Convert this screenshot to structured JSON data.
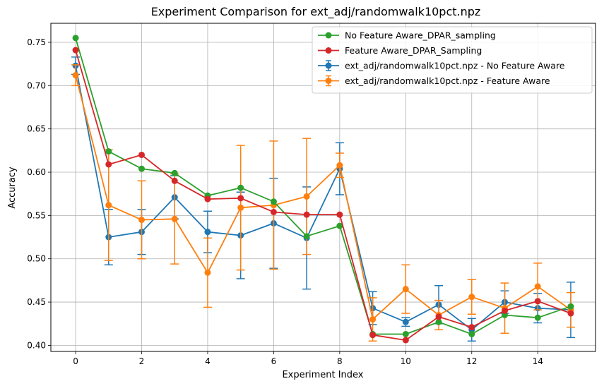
{
  "chart_data": {
    "type": "line",
    "title": "Experiment Comparison for ext_adj/randomwalk10pct.npz",
    "xlabel": "Experiment Index",
    "ylabel": "Accuracy",
    "xlim": [
      -0.75,
      15.75
    ],
    "ylim": [
      0.393,
      0.772
    ],
    "x_ticks": [
      0,
      2,
      4,
      6,
      8,
      10,
      12,
      14
    ],
    "x_tick_labels": [
      "0",
      "2",
      "4",
      "6",
      "8",
      "10",
      "12",
      "14"
    ],
    "y_ticks": [
      0.4,
      0.45,
      0.5,
      0.55,
      0.6,
      0.65,
      0.7,
      0.75
    ],
    "y_tick_labels": [
      "0.40",
      "0.45",
      "0.50",
      "0.55",
      "0.60",
      "0.65",
      "0.70",
      "0.75"
    ],
    "grid": true,
    "legend_position": "top-right",
    "x": [
      0,
      1,
      2,
      3,
      4,
      5,
      6,
      7,
      8,
      9,
      10,
      11,
      12,
      13,
      14,
      15
    ],
    "series": [
      {
        "name": "ext_adj/randomwalk10pct.npz - No Feature Aware",
        "color": "#1f77b4",
        "values": [
          0.723,
          0.525,
          0.531,
          0.571,
          0.531,
          0.527,
          0.541,
          0.524,
          0.604,
          0.443,
          0.427,
          0.447,
          0.418,
          0.45,
          0.443,
          0.441
        ],
        "errors": [
          0.01,
          0.032,
          0.026,
          0.025,
          0.024,
          0.05,
          0.052,
          0.059,
          0.03,
          0.019,
          0.005,
          0.022,
          0.013,
          0.013,
          0.017,
          0.032
        ]
      },
      {
        "name": "ext_adj/randomwalk10pct.npz - Feature Aware",
        "color": "#ff7f0e",
        "values": [
          0.712,
          0.562,
          0.545,
          0.546,
          0.484,
          0.559,
          0.562,
          0.572,
          0.608,
          0.43,
          0.465,
          0.435,
          0.456,
          0.443,
          0.468,
          0.441
        ],
        "errors": [
          0.012,
          0.064,
          0.045,
          0.052,
          0.04,
          0.072,
          0.074,
          0.067,
          0.014,
          0.025,
          0.028,
          0.017,
          0.02,
          0.029,
          0.027,
          0.02
        ]
      },
      {
        "name": "No Feature Aware_DPAR_sampling",
        "color": "#2ca02c",
        "values": [
          0.755,
          0.624,
          0.604,
          0.599,
          0.573,
          0.582,
          0.566,
          0.526,
          0.538,
          0.413,
          0.413,
          0.427,
          0.413,
          0.435,
          0.432,
          0.445
        ]
      },
      {
        "name": "Feature Aware_DPAR_Sampling",
        "color": "#d62728",
        "values": [
          0.741,
          0.609,
          0.62,
          0.59,
          0.569,
          0.57,
          0.554,
          0.551,
          0.551,
          0.412,
          0.406,
          0.433,
          0.421,
          0.44,
          0.451,
          0.437
        ]
      }
    ],
    "legend_order": [
      2,
      3,
      0,
      1
    ]
  }
}
